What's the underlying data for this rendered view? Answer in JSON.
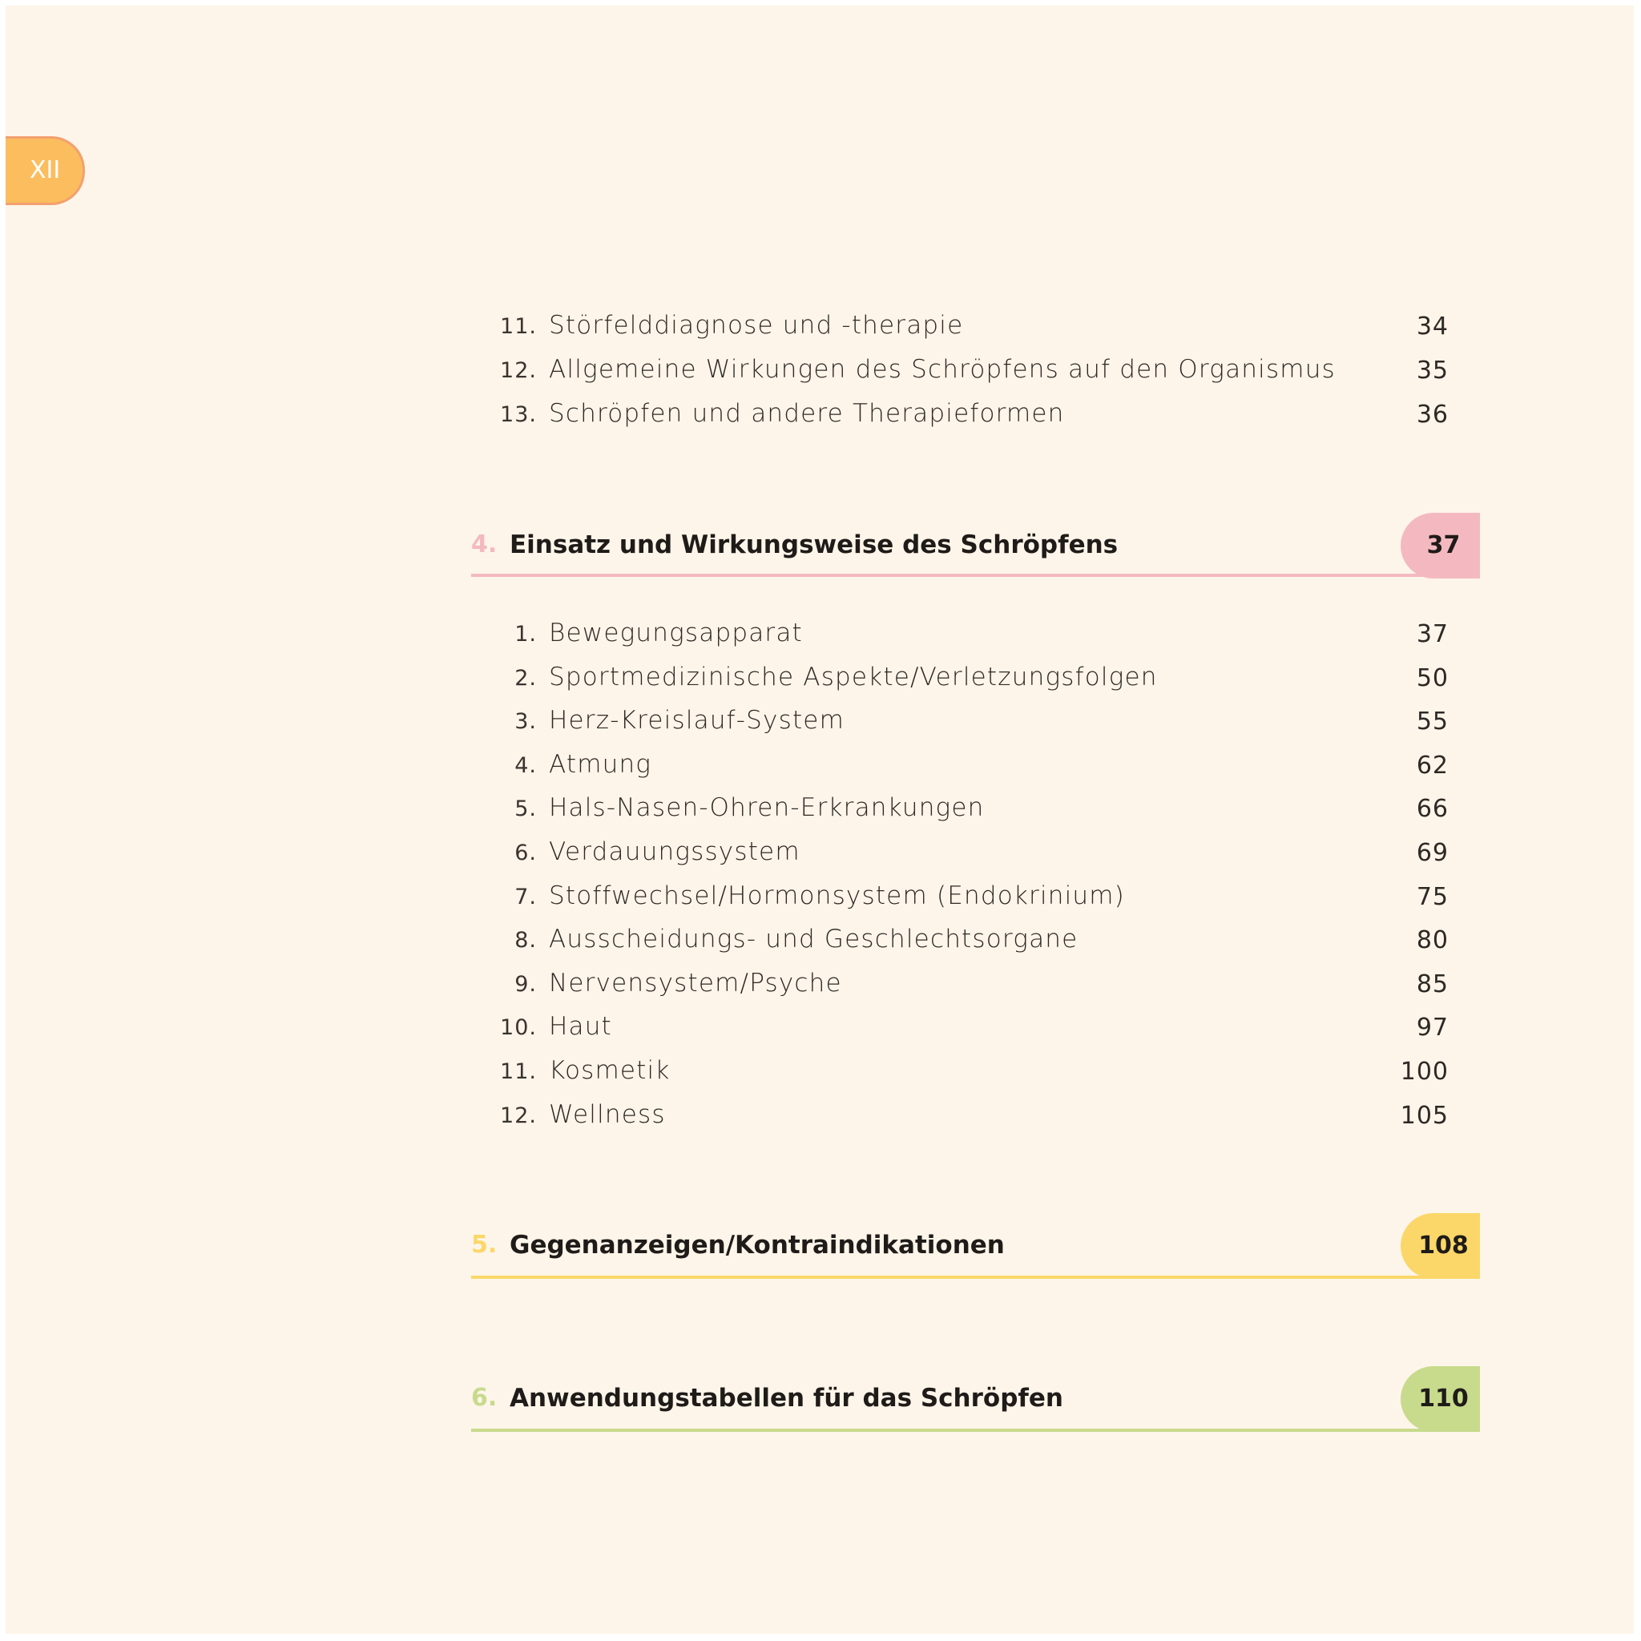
{
  "page_label": "XII",
  "colors": {
    "background": "#fdf5e9",
    "folio": "#fbbd5e",
    "section4": "#f4b9c0",
    "section5": "#fbd769",
    "section6": "#c8da8c"
  },
  "top_entries": [
    {
      "num": "11.",
      "title": "Störfelddiagnose und -therapie",
      "page": "34"
    },
    {
      "num": "12.",
      "title": "Allgemeine Wirkungen des Schröpfens auf den Organismus",
      "page": "35"
    },
    {
      "num": "13.",
      "title": "Schröpfen und andere Therapieformen",
      "page": "36"
    }
  ],
  "sections": [
    {
      "num": "4.",
      "title": "Einsatz und Wirkungsweise des Schröpfens",
      "page": "37",
      "entries": [
        {
          "num": "1.",
          "title": "Bewegungsapparat",
          "page": "37"
        },
        {
          "num": "2.",
          "title": "Sportmedizinische Aspekte/Verletzungsfolgen",
          "page": "50"
        },
        {
          "num": "3.",
          "title": "Herz-Kreislauf-System",
          "page": "55"
        },
        {
          "num": "4.",
          "title": "Atmung",
          "page": "62"
        },
        {
          "num": "5.",
          "title": "Hals-Nasen-Ohren-Erkrankungen",
          "page": "66"
        },
        {
          "num": "6.",
          "title": "Verdauungssystem",
          "page": "69"
        },
        {
          "num": "7.",
          "title": "Stoffwechsel/Hormonsystem (Endokrinium)",
          "page": "75"
        },
        {
          "num": "8.",
          "title": "Ausscheidungs- und Geschlechtsorgane",
          "page": "80"
        },
        {
          "num": "9.",
          "title": "Nervensystem/Psyche",
          "page": "85"
        },
        {
          "num": "10.",
          "title": "Haut",
          "page": "97"
        },
        {
          "num": "11.",
          "title": "Kosmetik",
          "page": "100"
        },
        {
          "num": "12.",
          "title": "Wellness",
          "page": "105"
        }
      ]
    },
    {
      "num": "5.",
      "title": "Gegenanzeigen/Kontraindikationen",
      "page": "108"
    },
    {
      "num": "6.",
      "title": "Anwendungstabellen für das Schröpfen",
      "page": "110"
    }
  ]
}
